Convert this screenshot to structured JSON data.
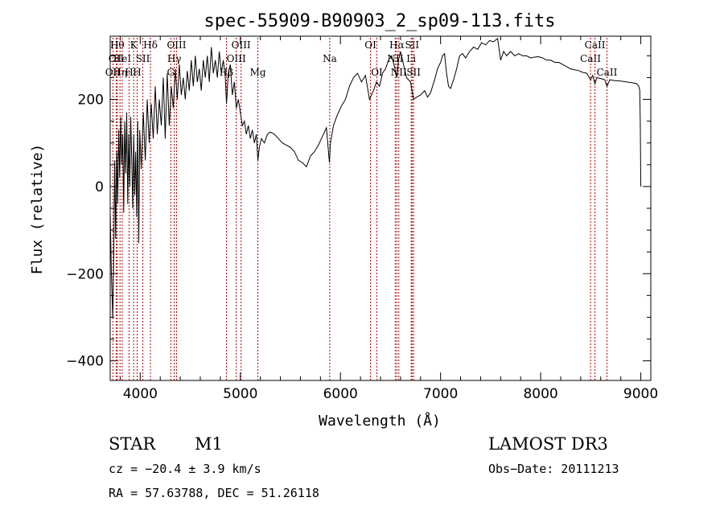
{
  "chart_data": {
    "type": "line",
    "title": "spec-55909-B90903_2_sp09-113.fits",
    "xlabel": "Wavelength (Å)",
    "ylabel": "Flux (relative)",
    "xlim": [
      3700,
      9100
    ],
    "ylim": [
      -445,
      345
    ],
    "xticks": [
      4000,
      5000,
      6000,
      7000,
      8000,
      9000
    ],
    "yticks": [
      -400,
      -200,
      0,
      200
    ],
    "series": [
      {
        "color": "#000000",
        "points": [
          [
            3700,
            -60
          ],
          [
            3712,
            -200
          ],
          [
            3725,
            -300
          ],
          [
            3735,
            -160
          ],
          [
            3745,
            60
          ],
          [
            3755,
            -120
          ],
          [
            3765,
            80
          ],
          [
            3775,
            -40
          ],
          [
            3785,
            130
          ],
          [
            3795,
            20
          ],
          [
            3805,
            160
          ],
          [
            3815,
            50
          ],
          [
            3825,
            120
          ],
          [
            3835,
            -60
          ],
          [
            3845,
            150
          ],
          [
            3855,
            30
          ],
          [
            3865,
            170
          ],
          [
            3875,
            -40
          ],
          [
            3885,
            120
          ],
          [
            3895,
            0
          ],
          [
            3905,
            160
          ],
          [
            3915,
            60
          ],
          [
            3925,
            -50
          ],
          [
            3935,
            120
          ],
          [
            3945,
            -20
          ],
          [
            3955,
            80
          ],
          [
            3965,
            -70
          ],
          [
            3975,
            150
          ],
          [
            3985,
            -130
          ],
          [
            3995,
            130
          ],
          [
            4010,
            40
          ],
          [
            4030,
            170
          ],
          [
            4050,
            60
          ],
          [
            4070,
            200
          ],
          [
            4090,
            100
          ],
          [
            4110,
            190
          ],
          [
            4130,
            110
          ],
          [
            4150,
            230
          ],
          [
            4170,
            120
          ],
          [
            4190,
            200
          ],
          [
            4210,
            140
          ],
          [
            4230,
            250
          ],
          [
            4250,
            110
          ],
          [
            4270,
            260
          ],
          [
            4290,
            140
          ],
          [
            4310,
            230
          ],
          [
            4330,
            180
          ],
          [
            4350,
            270
          ],
          [
            4370,
            200
          ],
          [
            4390,
            280
          ],
          [
            4410,
            210
          ],
          [
            4430,
            250
          ],
          [
            4450,
            200
          ],
          [
            4470,
            265
          ],
          [
            4490,
            220
          ],
          [
            4510,
            290
          ],
          [
            4530,
            230
          ],
          [
            4550,
            300
          ],
          [
            4570,
            240
          ],
          [
            4590,
            270
          ],
          [
            4610,
            220
          ],
          [
            4630,
            290
          ],
          [
            4650,
            250
          ],
          [
            4670,
            300
          ],
          [
            4690,
            240
          ],
          [
            4710,
            320
          ],
          [
            4730,
            260
          ],
          [
            4750,
            290
          ],
          [
            4770,
            250
          ],
          [
            4790,
            310
          ],
          [
            4810,
            260
          ],
          [
            4830,
            290
          ],
          [
            4850,
            250
          ],
          [
            4862,
            190
          ],
          [
            4880,
            260
          ],
          [
            4900,
            280
          ],
          [
            4920,
            210
          ],
          [
            4940,
            240
          ],
          [
            4960,
            180
          ],
          [
            4980,
            200
          ],
          [
            5000,
            170
          ],
          [
            5020,
            140
          ],
          [
            5040,
            150
          ],
          [
            5060,
            120
          ],
          [
            5080,
            140
          ],
          [
            5100,
            110
          ],
          [
            5120,
            130
          ],
          [
            5140,
            100
          ],
          [
            5160,
            120
          ],
          [
            5175,
            60
          ],
          [
            5190,
            90
          ],
          [
            5210,
            110
          ],
          [
            5240,
            100
          ],
          [
            5270,
            120
          ],
          [
            5300,
            125
          ],
          [
            5340,
            120
          ],
          [
            5380,
            110
          ],
          [
            5420,
            100
          ],
          [
            5460,
            95
          ],
          [
            5500,
            90
          ],
          [
            5540,
            80
          ],
          [
            5580,
            60
          ],
          [
            5620,
            55
          ],
          [
            5660,
            45
          ],
          [
            5700,
            70
          ],
          [
            5740,
            80
          ],
          [
            5780,
            95
          ],
          [
            5820,
            115
          ],
          [
            5860,
            135
          ],
          [
            5890,
            55
          ],
          [
            5900,
            100
          ],
          [
            5930,
            140
          ],
          [
            5970,
            165
          ],
          [
            6010,
            185
          ],
          [
            6050,
            200
          ],
          [
            6090,
            230
          ],
          [
            6130,
            250
          ],
          [
            6170,
            260
          ],
          [
            6210,
            240
          ],
          [
            6250,
            255
          ],
          [
            6290,
            200
          ],
          [
            6310,
            210
          ],
          [
            6330,
            220
          ],
          [
            6360,
            240
          ],
          [
            6390,
            230
          ],
          [
            6420,
            260
          ],
          [
            6450,
            270
          ],
          [
            6480,
            290
          ],
          [
            6510,
            300
          ],
          [
            6540,
            275
          ],
          [
            6563,
            250
          ],
          [
            6580,
            290
          ],
          [
            6600,
            310
          ],
          [
            6630,
            280
          ],
          [
            6660,
            250
          ],
          [
            6700,
            240
          ],
          [
            6730,
            200
          ],
          [
            6760,
            205
          ],
          [
            6800,
            210
          ],
          [
            6840,
            220
          ],
          [
            6870,
            205
          ],
          [
            6900,
            215
          ],
          [
            6940,
            245
          ],
          [
            6970,
            270
          ],
          [
            7000,
            285
          ],
          [
            7020,
            300
          ],
          [
            7040,
            305
          ],
          [
            7060,
            260
          ],
          [
            7080,
            230
          ],
          [
            7100,
            225
          ],
          [
            7130,
            245
          ],
          [
            7160,
            270
          ],
          [
            7190,
            300
          ],
          [
            7220,
            305
          ],
          [
            7250,
            295
          ],
          [
            7290,
            310
          ],
          [
            7330,
            320
          ],
          [
            7370,
            315
          ],
          [
            7410,
            330
          ],
          [
            7450,
            325
          ],
          [
            7490,
            335
          ],
          [
            7530,
            332
          ],
          [
            7570,
            340
          ],
          [
            7600,
            290
          ],
          [
            7630,
            310
          ],
          [
            7660,
            300
          ],
          [
            7700,
            310
          ],
          [
            7740,
            300
          ],
          [
            7780,
            305
          ],
          [
            7820,
            300
          ],
          [
            7860,
            300
          ],
          [
            7900,
            295
          ],
          [
            7940,
            297
          ],
          [
            7980,
            298
          ],
          [
            8020,
            295
          ],
          [
            8060,
            290
          ],
          [
            8100,
            290
          ],
          [
            8140,
            285
          ],
          [
            8180,
            285
          ],
          [
            8220,
            280
          ],
          [
            8260,
            275
          ],
          [
            8300,
            270
          ],
          [
            8340,
            268
          ],
          [
            8380,
            266
          ],
          [
            8420,
            262
          ],
          [
            8460,
            260
          ],
          [
            8498,
            245
          ],
          [
            8520,
            255
          ],
          [
            8542,
            235
          ],
          [
            8560,
            250
          ],
          [
            8600,
            248
          ],
          [
            8640,
            245
          ],
          [
            8662,
            230
          ],
          [
            8690,
            245
          ],
          [
            8740,
            243
          ],
          [
            8800,
            242
          ],
          [
            8860,
            240
          ],
          [
            8920,
            238
          ],
          [
            8960,
            236
          ],
          [
            8980,
            230
          ],
          [
            8990,
            220
          ],
          [
            8995,
            150
          ],
          [
            9000,
            0
          ]
        ]
      }
    ],
    "lines": [
      {
        "wl": 3727,
        "label": "OII",
        "row": 2
      },
      {
        "wl": 3760,
        "label": "OII",
        "row": 1
      },
      {
        "wl": 3771,
        "label": "Hθ",
        "row": 0
      },
      {
        "wl": 3798,
        "label": "Hη",
        "row": 2
      },
      {
        "wl": 3820,
        "label": "HeI",
        "row": 1
      },
      {
        "wl": 3889,
        "label": "H",
        "row": 2
      },
      {
        "wl": 3934,
        "label": "K",
        "row": 0
      },
      {
        "wl": 3969,
        "label": "H",
        "row": 2
      },
      {
        "wl": 4026,
        "label": "SII",
        "row": 1
      },
      {
        "wl": 4102,
        "label": "Hδ",
        "row": 0
      },
      {
        "wl": 4305,
        "label": "G",
        "row": 2
      },
      {
        "wl": 4340,
        "label": "Hγ",
        "row": 1
      },
      {
        "wl": 4363,
        "label": "OIII",
        "row": 0
      },
      {
        "wl": 4861,
        "label": "Hβ",
        "row": 2
      },
      {
        "wl": 4959,
        "label": "OIII",
        "row": 1
      },
      {
        "wl": 5007,
        "label": "OIII",
        "row": 0
      },
      {
        "wl": 5175,
        "label": "Mg",
        "row": 2
      },
      {
        "wl": 5893,
        "label": "Na",
        "row": 1
      },
      {
        "wl": 6300,
        "label": "OI",
        "row": 0
      },
      {
        "wl": 6364,
        "label": "OI",
        "row": 2
      },
      {
        "wl": 6548,
        "label": "NII",
        "row": 1
      },
      {
        "wl": 6563,
        "label": "Hα",
        "row": 0
      },
      {
        "wl": 6583,
        "label": "NII",
        "row": 2
      },
      {
        "wl": 6707,
        "label": "Li",
        "row": 1
      },
      {
        "wl": 6716,
        "label": "SII",
        "row": 0
      },
      {
        "wl": 6731,
        "label": "SII",
        "row": 2
      },
      {
        "wl": 8498,
        "label": "CaII",
        "row": 1
      },
      {
        "wl": 8542,
        "label": "CaII",
        "row": 0
      },
      {
        "wl": 8662,
        "label": "CaII",
        "row": 2
      }
    ],
    "line_color": "#b00000"
  },
  "info": {
    "object_type": "STAR",
    "subclass": "M1",
    "survey": "LAMOST DR3",
    "cz": "cz = −20.4 ± 3.9 km/s",
    "obs_date": "Obs−Date: 20111213",
    "coords": "RA =  57.63788, DEC =  51.26118"
  }
}
